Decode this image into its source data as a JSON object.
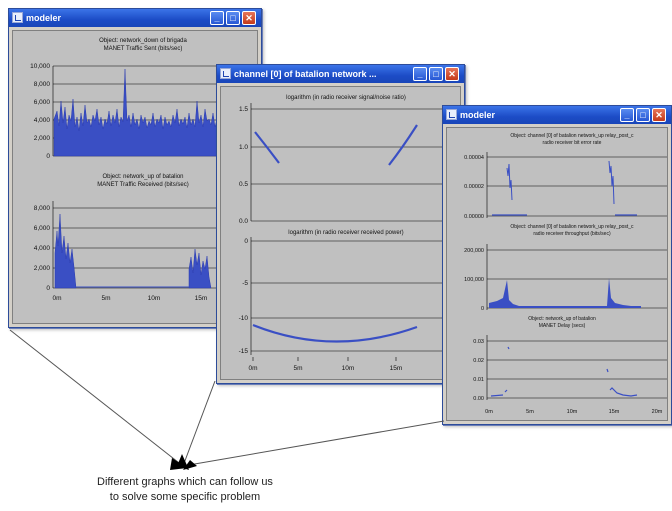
{
  "windows": [
    {
      "id": "w1",
      "title": "modeler",
      "panels": [
        {
          "title_lines": [
            "Object: network_down of brigada",
            "MANET Traffic Sent (bits/sec)"
          ],
          "y_ticks": [
            "10,000",
            "8,000",
            "6,000",
            "4,000",
            "2,000",
            "0"
          ],
          "x_ticks": []
        },
        {
          "title_lines": [
            "Object: network_up of batalion",
            "MANET Traffic Received (bits/sec)"
          ],
          "y_ticks": [
            "8,000",
            "6,000",
            "4,000",
            "2,000",
            "0"
          ],
          "x_ticks": [
            "0m",
            "5m",
            "10m",
            "15m"
          ]
        }
      ]
    },
    {
      "id": "w2",
      "title": "channel [0] of batalion network ...",
      "panels": [
        {
          "title_lines": [
            "logarithm (in radio receiver signal/noise ratio)"
          ],
          "y_ticks": [
            "1.5",
            "1.0",
            "0.5",
            "0.0"
          ],
          "x_ticks": []
        },
        {
          "title_lines": [
            "logarithm (in radio receiver received power)"
          ],
          "y_ticks": [
            "0",
            "-5",
            "-10",
            "-15"
          ],
          "x_ticks": [
            "0m",
            "5m",
            "10m",
            "15m"
          ]
        }
      ]
    },
    {
      "id": "w3",
      "title": "modeler",
      "panels": [
        {
          "title_lines": [
            "Object: channel [0] of batalion network_up relay_post_c",
            "radio receiver bit error rate"
          ],
          "y_ticks": [
            "0.00004",
            "0.00002",
            "0.00000"
          ],
          "x_ticks": []
        },
        {
          "title_lines": [
            "Object: channel [0] of batalion network_up relay_post_c",
            "radio receiver throughput (bits/sec)"
          ],
          "y_ticks": [
            "200,000",
            "100,000",
            "0"
          ],
          "x_ticks": []
        },
        {
          "title_lines": [
            "Object: network_up of batalion",
            "MANET Delay (secs)"
          ],
          "y_ticks": [
            "0.03",
            "0.02",
            "0.01",
            "0.00"
          ],
          "x_ticks": [
            "0m",
            "5m",
            "10m",
            "15m",
            "20m"
          ]
        }
      ]
    }
  ],
  "caption": {
    "line1": "Different graphs which can follow us",
    "line2": "to solve some specific problem"
  },
  "colors": {
    "series": "#3a4fc4",
    "gridline": "#000000",
    "plot_bg": "#c0c0c0"
  }
}
